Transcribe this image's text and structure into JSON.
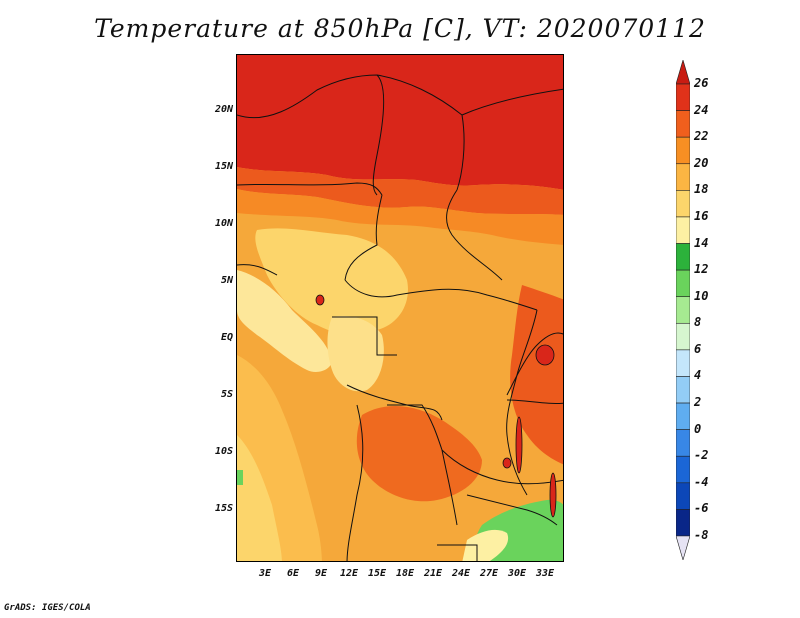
{
  "title": "Temperature at 850hPa [C], VT: 2020070112",
  "credit": "GrADS: IGES/COLA",
  "lat_labels": [
    "20N",
    "15N",
    "10N",
    "5N",
    "EQ",
    "5S",
    "10S",
    "15S"
  ],
  "lon_labels": [
    "3E",
    "6E",
    "9E",
    "12E",
    "15E",
    "18E",
    "21E",
    "24E",
    "27E",
    "30E",
    "33E"
  ],
  "colorbar": {
    "labels": [
      "26",
      "24",
      "22",
      "20",
      "18",
      "16",
      "14",
      "12",
      "10",
      "8",
      "6",
      "4",
      "2",
      "0",
      "-2",
      "-4",
      "-6",
      "-8"
    ],
    "colors": [
      "#c81c12",
      "#e0321a",
      "#f05f1d",
      "#f78f23",
      "#fbb543",
      "#fcd56b",
      "#fdf0a3",
      "#2cb23b",
      "#6ad35c",
      "#a6ea91",
      "#d6f6cf",
      "#c4e6fb",
      "#93cdf6",
      "#5fadf0",
      "#3887e6",
      "#1b66d6",
      "#0c47b8",
      "#092688",
      "#e6e3f4"
    ]
  }
}
